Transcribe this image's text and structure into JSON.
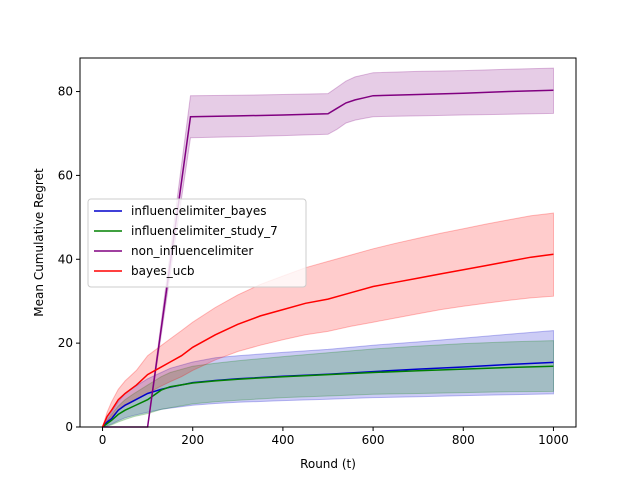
{
  "chart_data": {
    "type": "line",
    "title": "",
    "xlabel": "Round (t)",
    "ylabel": "Mean Cumulative Regret",
    "xlim": [
      -50,
      1050
    ],
    "ylim": [
      0,
      88
    ],
    "xticks": [
      0,
      200,
      400,
      600,
      800,
      1000
    ],
    "yticks": [
      0,
      20,
      40,
      60,
      80
    ],
    "grid": false,
    "legend_position": "center-left",
    "series": [
      {
        "name": "influencelimiter_bayes",
        "color": "#0000cc",
        "x": [
          0,
          10,
          20,
          35,
          50,
          70,
          100,
          130,
          150,
          200,
          250,
          300,
          400,
          500,
          600,
          700,
          800,
          900,
          1000
        ],
        "y": [
          0,
          1.2,
          2.0,
          4.0,
          5.2,
          6.3,
          8.0,
          9.0,
          9.5,
          10.6,
          11.1,
          11.5,
          12.1,
          12.6,
          13.2,
          13.8,
          14.3,
          14.9,
          15.4
        ],
        "lower": [
          0,
          0.3,
          0.7,
          1.5,
          2.2,
          2.8,
          3.5,
          4.2,
          4.5,
          5.2,
          5.6,
          5.9,
          6.3,
          6.6,
          7.0,
          7.2,
          7.5,
          7.7,
          7.9
        ],
        "upper": [
          0,
          2.0,
          3.5,
          6.0,
          8.0,
          9.5,
          11.5,
          13.0,
          14.0,
          15.5,
          16.5,
          17.0,
          17.8,
          18.5,
          19.5,
          20.3,
          21.2,
          22.1,
          23.0
        ]
      },
      {
        "name": "influencelimiter_study_7",
        "color": "#008000",
        "x": [
          0,
          10,
          20,
          35,
          50,
          70,
          100,
          130,
          150,
          200,
          250,
          300,
          400,
          500,
          600,
          700,
          800,
          900,
          1000
        ],
        "y": [
          0,
          0.8,
          1.6,
          3.0,
          4.0,
          5.0,
          6.5,
          8.8,
          9.6,
          10.5,
          11.0,
          11.4,
          12.0,
          12.5,
          13.0,
          13.4,
          13.8,
          14.2,
          14.5
        ],
        "lower": [
          0,
          0.2,
          0.5,
          1.2,
          1.8,
          2.5,
          3.2,
          4.2,
          4.6,
          5.5,
          6.0,
          6.4,
          7.0,
          7.4,
          7.8,
          8.0,
          8.2,
          8.4,
          8.5
        ],
        "upper": [
          0,
          1.5,
          3.0,
          5.0,
          6.5,
          8.0,
          10.0,
          12.0,
          13.0,
          14.5,
          15.2,
          15.8,
          16.8,
          17.7,
          18.6,
          19.3,
          19.9,
          20.3,
          20.6
        ]
      },
      {
        "name": "non_influencelimiter",
        "color": "#800080",
        "x": [
          0,
          100,
          195,
          300,
          400,
          500,
          520,
          540,
          560,
          580,
          600,
          700,
          800,
          900,
          1000
        ],
        "y": [
          0,
          0,
          74.0,
          74.2,
          74.4,
          74.7,
          76.0,
          77.3,
          78.0,
          78.5,
          79.0,
          79.3,
          79.6,
          80.0,
          80.3
        ],
        "lower": [
          0,
          0,
          69.0,
          69.2,
          69.5,
          69.8,
          71.0,
          72.5,
          73.2,
          73.6,
          74.0,
          74.2,
          74.4,
          74.6,
          74.8
        ],
        "upper": [
          0,
          0,
          79.0,
          79.1,
          79.3,
          79.5,
          81.0,
          82.5,
          83.5,
          84.0,
          84.5,
          84.8,
          85.0,
          85.3,
          85.6
        ]
      },
      {
        "name": "bayes_ucb",
        "color": "#ff0000",
        "x": [
          0,
          10,
          20,
          35,
          50,
          75,
          100,
          125,
          150,
          175,
          200,
          250,
          300,
          350,
          400,
          450,
          500,
          550,
          600,
          650,
          700,
          750,
          800,
          850,
          900,
          950,
          1000
        ],
        "y": [
          0,
          2.5,
          4.0,
          6.5,
          8.0,
          10.0,
          12.5,
          14.0,
          15.5,
          17.0,
          19.0,
          22.0,
          24.5,
          26.5,
          28.0,
          29.5,
          30.5,
          32.0,
          33.5,
          34.5,
          35.5,
          36.5,
          37.5,
          38.5,
          39.5,
          40.5,
          41.2
        ],
        "lower": [
          0,
          1.5,
          2.5,
          4.0,
          5.0,
          6.5,
          8.0,
          9.5,
          10.8,
          12.0,
          13.5,
          16.0,
          18.0,
          19.5,
          20.8,
          22.0,
          22.8,
          24.0,
          25.0,
          26.0,
          27.0,
          28.0,
          28.8,
          29.5,
          30.2,
          30.8,
          31.2
        ],
        "upper": [
          0,
          3.5,
          6.0,
          9.0,
          11.0,
          13.5,
          17.0,
          19.0,
          21.0,
          23.0,
          25.0,
          28.5,
          31.5,
          34.0,
          36.0,
          38.0,
          39.5,
          41.0,
          42.5,
          43.8,
          45.0,
          46.2,
          47.3,
          48.4,
          49.4,
          50.4,
          51.0
        ]
      }
    ]
  }
}
